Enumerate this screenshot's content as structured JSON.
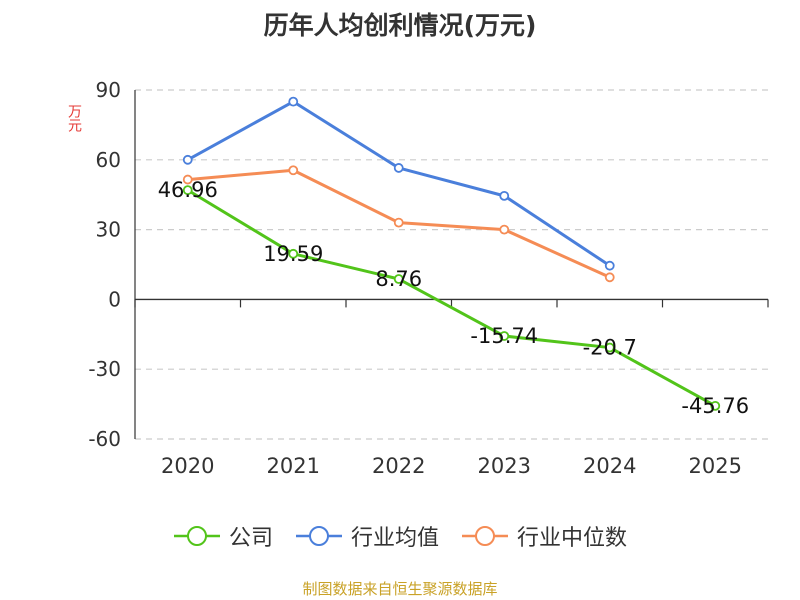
{
  "chart_data": {
    "type": "line",
    "title": "历年人均创利情况(万元)",
    "ylabel": "万元",
    "categories": [
      "2020",
      "2021",
      "2022",
      "2023",
      "2024",
      "2025"
    ],
    "ylim": [
      -60,
      90
    ],
    "yticks": [
      90,
      60,
      30,
      0,
      -30,
      -60
    ],
    "grid": true,
    "legend_position": "bottom",
    "series": [
      {
        "name": "公司",
        "color": "#52c41a",
        "values": [
          46.96,
          19.59,
          8.76,
          -15.74,
          -20.7,
          -45.76
        ],
        "labels": [
          "46.96",
          "19.59",
          "8.76",
          "-15.74",
          "-20.7",
          "-45.76"
        ]
      },
      {
        "name": "行业均值",
        "color": "#4a7fdb",
        "values": [
          60,
          85,
          56.5,
          44.5,
          14.5,
          null
        ]
      },
      {
        "name": "行业中位数",
        "color": "#f58c55",
        "values": [
          51.5,
          55.5,
          33,
          30,
          9.5,
          null
        ]
      }
    ]
  },
  "source": "制图数据来自恒生聚源数据库"
}
